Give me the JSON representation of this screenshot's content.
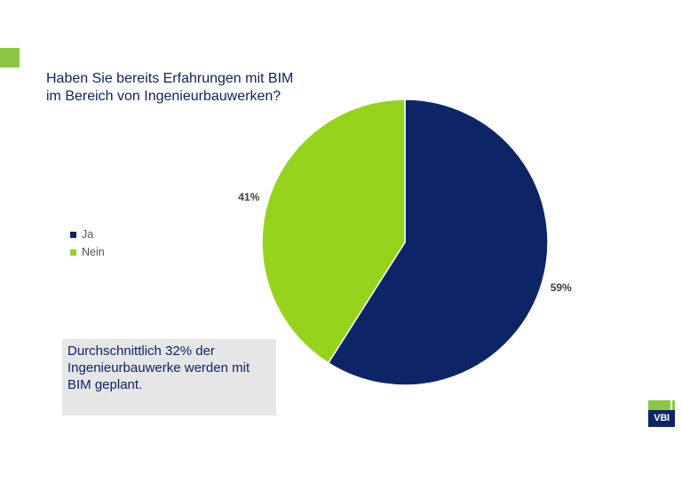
{
  "colors": {
    "accent_green": "#8dc63f",
    "navy": "#0d2466",
    "series_ja": "#0d2466",
    "series_nein": "#96d31d"
  },
  "title": {
    "line1": "Haben Sie bereits Erfahrungen mit BIM",
    "line2": "im Bereich von Ingenieurbauwerken?"
  },
  "legend": [
    {
      "label": "Ja"
    },
    {
      "label": "Nein"
    }
  ],
  "note": "Durchschnittlich 32% der Ingenieurbauwerke werden mit BIM geplant.",
  "logo": {
    "text": "VBI"
  },
  "chart_data": {
    "type": "pie",
    "title": "Haben Sie bereits Erfahrungen mit BIM im Bereich von Ingenieurbauwerken?",
    "categories": [
      "Ja",
      "Nein"
    ],
    "values": [
      59,
      41
    ],
    "data_labels": [
      "59%",
      "41%"
    ],
    "legend_position": "left",
    "start_angle_deg": 0,
    "direction": "clockwise"
  }
}
